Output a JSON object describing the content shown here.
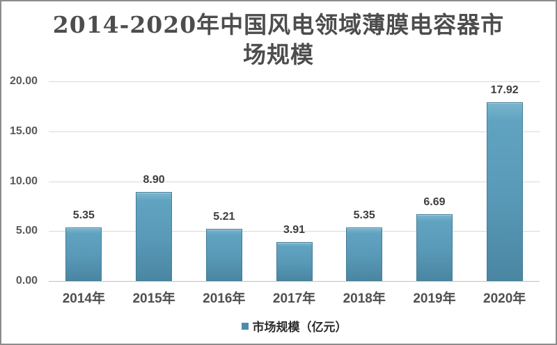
{
  "chart_data": {
    "type": "bar",
    "title": "2014-2020年中国风电领域薄膜电容器市场规模",
    "title_lines": [
      "2014-2020年中国风电领域薄膜电容器市",
      "场规模"
    ],
    "categories": [
      "2014年",
      "2015年",
      "2016年",
      "2017年",
      "2018年",
      "2019年",
      "2020年"
    ],
    "values": [
      5.35,
      8.9,
      5.21,
      3.91,
      5.35,
      6.69,
      17.92
    ],
    "value_labels": [
      "5.35",
      "8.90",
      "5.21",
      "3.91",
      "5.35",
      "6.69",
      "17.92"
    ],
    "series_name": "市场规模（亿元）",
    "xlabel": "",
    "ylabel": "",
    "ylim": [
      0,
      20
    ],
    "ytick_labels": [
      "20.00",
      "15.00",
      "10.00",
      "5.00",
      "0.00"
    ],
    "grid": true,
    "legend_position": "bottom"
  },
  "legend": {
    "label": "市场规模（亿元）"
  },
  "colors": {
    "bar_fill": "#5899b7",
    "bar_border": "#437d96",
    "legend_marker": "#4e8cab",
    "gridline": "#d9d9d9",
    "axis_line": "#bfbfbf",
    "title_text": "#4d4d4d",
    "tick_text": "#595959",
    "value_text": "#3d3d3d",
    "frame_border": "#8c8c8c",
    "background": "#ffffff"
  }
}
